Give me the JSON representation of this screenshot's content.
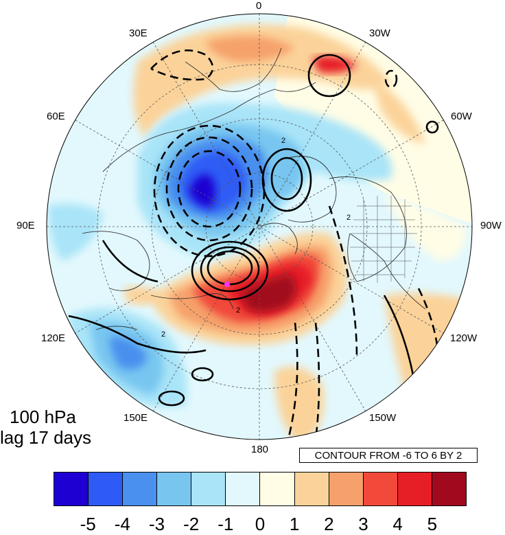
{
  "map": {
    "projection": "north polar stereographic",
    "longitude_labels": [
      "0",
      "30W",
      "60W",
      "90W",
      "120W",
      "150W",
      "180",
      "150E",
      "120E",
      "90E",
      "60E",
      "30E"
    ],
    "contour_note": "CONTOUR FROM -6 TO 6 BY 2",
    "contour_label_value": "2",
    "marker_color": "#ff33ff"
  },
  "title": {
    "line1": "100 hPa",
    "line2": "lag 17 days"
  },
  "colorbar": {
    "labels": [
      "-5",
      "-4",
      "-3",
      "-2",
      "-1",
      "0",
      "1",
      "2",
      "3",
      "4",
      "5"
    ],
    "colors": [
      "#1e00d2",
      "#2e5bf5",
      "#4a90ee",
      "#78c6f0",
      "#a9e4f8",
      "#e2f8fd",
      "#fffde6",
      "#fbd39a",
      "#f6a16b",
      "#f14a3a",
      "#e61e25",
      "#a10a1e"
    ]
  }
}
